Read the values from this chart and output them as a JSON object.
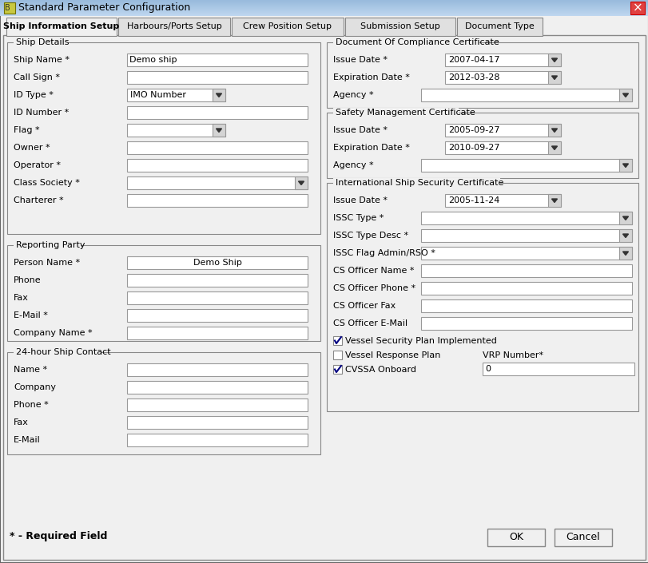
{
  "title": "Standard Parameter Configuration",
  "titlebar_text": "Standard Parameter Configuration",
  "tabs": [
    "Ship Information Setup",
    "Harbours/Ports Setup",
    "Crew Position Setup",
    "Submission Setup",
    "Document Type"
  ],
  "section_ship_details": "Ship Details",
  "section_reporting": "Reporting Party",
  "section_24hr": "24-hour Ship Contact",
  "section_doc_compliance": "Document Of Compliance Certificate",
  "section_safety": "Safety Management Certificate",
  "section_issc": "International Ship Security Certificate",
  "required_text": "* - Required Field",
  "ok_text": "OK",
  "cancel_text": "Cancel",
  "vrp_label": "VRP Number*",
  "vrp_value": "0",
  "bg_color": "#f0f0f0",
  "titlebar_bg": "#6a9fd8",
  "field_bg": "#ffffff",
  "tab_active_bg": "#f0f0f0",
  "tab_inactive_bg": "#e0e0e0",
  "border_color": "#808080",
  "left_fields": [
    {
      "label": "Ship Name *",
      "value": "Demo ship",
      "type": "text"
    },
    {
      "label": "Call Sign *",
      "value": "",
      "type": "text"
    },
    {
      "label": "ID Type *",
      "value": "IMO Number",
      "type": "dropdown_half"
    },
    {
      "label": "ID Number *",
      "value": "",
      "type": "text"
    },
    {
      "label": "Flag *",
      "value": "",
      "type": "dropdown_half"
    },
    {
      "label": "Owner *",
      "value": "",
      "type": "text"
    },
    {
      "label": "Operator *",
      "value": "",
      "type": "text"
    },
    {
      "label": "Class Society *",
      "value": "",
      "type": "dropdown"
    },
    {
      "label": "Charterer *",
      "value": "",
      "type": "text"
    }
  ],
  "reporting_fields": [
    {
      "label": "Person Name *",
      "value": "Demo Ship",
      "type": "text_center"
    },
    {
      "label": "Phone",
      "value": "",
      "type": "text"
    },
    {
      "label": "Fax",
      "value": "",
      "type": "text"
    },
    {
      "label": "E-Mail *",
      "value": "",
      "type": "text"
    },
    {
      "label": "Company Name *",
      "value": "",
      "type": "text"
    }
  ],
  "contact_fields": [
    {
      "label": "Name *",
      "value": "",
      "type": "text"
    },
    {
      "label": "Company",
      "value": "",
      "type": "text"
    },
    {
      "label": "Phone *",
      "value": "",
      "type": "text"
    },
    {
      "label": "Fax",
      "value": "",
      "type": "text"
    },
    {
      "label": "E-Mail",
      "value": "",
      "type": "text"
    }
  ],
  "doc_compliance_fields": [
    {
      "label": "Issue Date *",
      "value": "2007-04-17",
      "type": "datepicker"
    },
    {
      "label": "Expiration Date *",
      "value": "2012-03-28",
      "type": "datepicker"
    },
    {
      "label": "Agency *",
      "value": "",
      "type": "dropdown_wide"
    }
  ],
  "safety_fields": [
    {
      "label": "Issue Date *",
      "value": "2005-09-27",
      "type": "datepicker"
    },
    {
      "label": "Expiration Date *",
      "value": "2010-09-27",
      "type": "datepicker"
    },
    {
      "label": "Agency *",
      "value": "",
      "type": "dropdown_wide"
    }
  ],
  "issc_fields": [
    {
      "label": "Issue Date *",
      "value": "2005-11-24",
      "type": "datepicker"
    },
    {
      "label": "ISSC Type *",
      "value": "",
      "type": "dropdown_wide"
    },
    {
      "label": "ISSC Type Desc *",
      "value": "",
      "type": "dropdown_wide"
    },
    {
      "label": "ISSC Flag Admin/RSO *",
      "value": "",
      "type": "dropdown_wide"
    },
    {
      "label": "CS Officer Name *",
      "value": "",
      "type": "text_wide"
    },
    {
      "label": "CS Officer Phone *",
      "value": "",
      "type": "text_wide"
    },
    {
      "label": "CS Officer Fax",
      "value": "",
      "type": "text_wide"
    },
    {
      "label": "CS Officer E-Mail",
      "value": "",
      "type": "text_wide"
    }
  ],
  "checkboxes": [
    {
      "label": "Vessel Security Plan Implemented",
      "checked": true
    },
    {
      "label": "Vessel Response Plan",
      "checked": false
    },
    {
      "label": "CVSSA Onboard",
      "checked": true
    }
  ]
}
